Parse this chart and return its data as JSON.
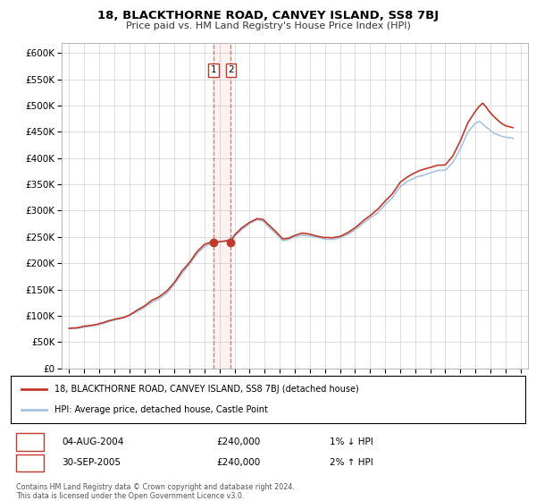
{
  "title": "18, BLACKTHORNE ROAD, CANVEY ISLAND, SS8 7BJ",
  "subtitle": "Price paid vs. HM Land Registry's House Price Index (HPI)",
  "legend_line1": "18, BLACKTHORNE ROAD, CANVEY ISLAND, SS8 7BJ (detached house)",
  "legend_line2": "HPI: Average price, detached house, Castle Point",
  "sale1_date": "04-AUG-2004",
  "sale1_price": "£240,000",
  "sale1_hpi": "1% ↓ HPI",
  "sale2_date": "30-SEP-2005",
  "sale2_price": "£240,000",
  "sale2_hpi": "2% ↑ HPI",
  "footer1": "Contains HM Land Registry data © Crown copyright and database right 2024.",
  "footer2": "This data is licensed under the Open Government Licence v3.0.",
  "hpi_color": "#a8c4e0",
  "price_color": "#c0392b",
  "marker_color": "#c0392b",
  "bg_color": "#ffffff",
  "grid_color": "#d0d0d0",
  "sale1_x": 2004.58,
  "sale2_x": 2005.75,
  "sale1_y": 240000,
  "sale2_y": 240000,
  "ylim_min": 0,
  "ylim_max": 620000,
  "xlim_min": 1994.5,
  "xlim_max": 2025.5,
  "yticks": [
    0,
    50000,
    100000,
    150000,
    200000,
    250000,
    300000,
    350000,
    400000,
    450000,
    500000,
    550000,
    600000
  ],
  "ytick_labels": [
    "£0",
    "£50K",
    "£100K",
    "£150K",
    "£200K",
    "£250K",
    "£300K",
    "£350K",
    "£400K",
    "£450K",
    "£500K",
    "£550K",
    "£600K"
  ]
}
